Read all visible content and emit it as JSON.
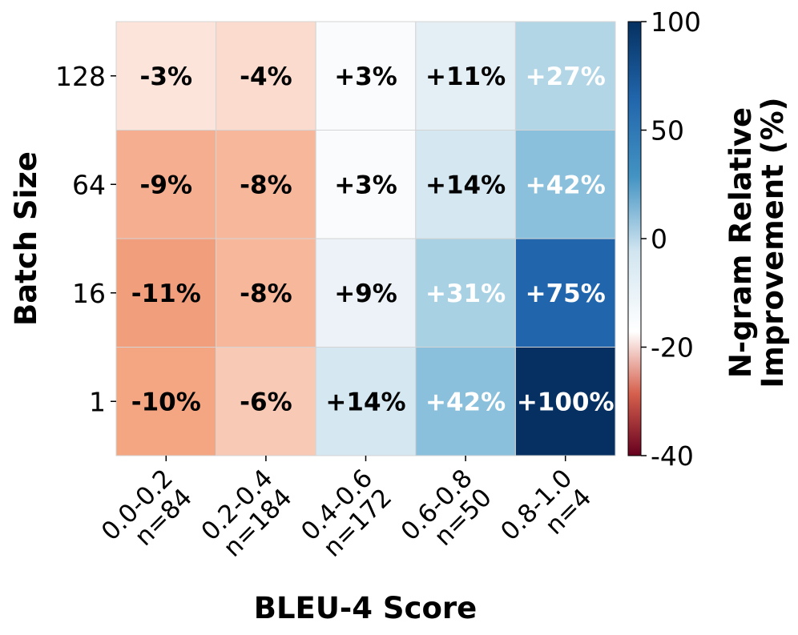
{
  "chart_data": {
    "type": "heatmap",
    "title": "",
    "xlabel": "BLEU-4 Score",
    "ylabel": "Batch Size",
    "x_categories": [
      {
        "range": "0.0-0.2",
        "n": "n=84"
      },
      {
        "range": "0.2-0.4",
        "n": "n=184"
      },
      {
        "range": "0.4-0.6",
        "n": "n=172"
      },
      {
        "range": "0.6-0.8",
        "n": "n=50"
      },
      {
        "range": "0.8-1.0",
        "n": "n=4"
      }
    ],
    "y_categories": [
      "128",
      "64",
      "16",
      "1"
    ],
    "values": [
      [
        -3,
        -4,
        3,
        11,
        27
      ],
      [
        -9,
        -8,
        3,
        14,
        42
      ],
      [
        -11,
        -8,
        9,
        31,
        75
      ],
      [
        -10,
        -6,
        14,
        42,
        100
      ]
    ],
    "labels": [
      [
        "-3%",
        "-4%",
        "+3%",
        "+11%",
        "+27%"
      ],
      [
        "-9%",
        "-8%",
        "+3%",
        "+14%",
        "+42%"
      ],
      [
        "-11%",
        "-8%",
        "+9%",
        "+31%",
        "+75%"
      ],
      [
        "-10%",
        "-6%",
        "+14%",
        "+42%",
        "+100%"
      ]
    ],
    "colorbar": {
      "label": "N-gram Relative Improvement (%)",
      "label_lines": [
        "N-gram Relative",
        "Improvement (%)"
      ],
      "ticks": [
        "100",
        "50",
        "0",
        "-20",
        "-40"
      ],
      "colormap": "RdBu",
      "center": 0,
      "range": [
        -40,
        100
      ]
    }
  }
}
